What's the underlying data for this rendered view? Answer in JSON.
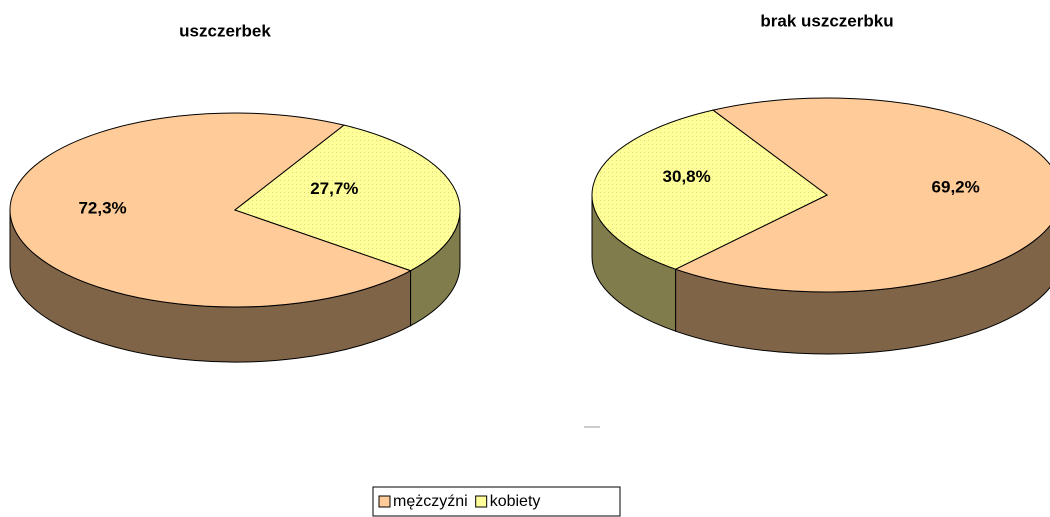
{
  "chart_data": [
    {
      "type": "pie",
      "title": "uszczerbek",
      "categories": [
        "mężczyźni",
        "kobiety"
      ],
      "values": [
        72.3,
        27.7
      ],
      "value_labels": [
        "72,3%",
        "27,7%"
      ],
      "colors": [
        "#ffcc99",
        "#ffff99"
      ],
      "side_colors": [
        "#806448",
        "#807c4c"
      ]
    },
    {
      "type": "pie",
      "title": "brak uszczerbku",
      "values": [
        69.2,
        30.8
      ],
      "value_labels": [
        "69,2%",
        "30,8%"
      ],
      "colors": [
        "#ffcc99",
        "#ffff99"
      ],
      "side_colors": [
        "#806448",
        "#807c4c"
      ]
    }
  ]
}
